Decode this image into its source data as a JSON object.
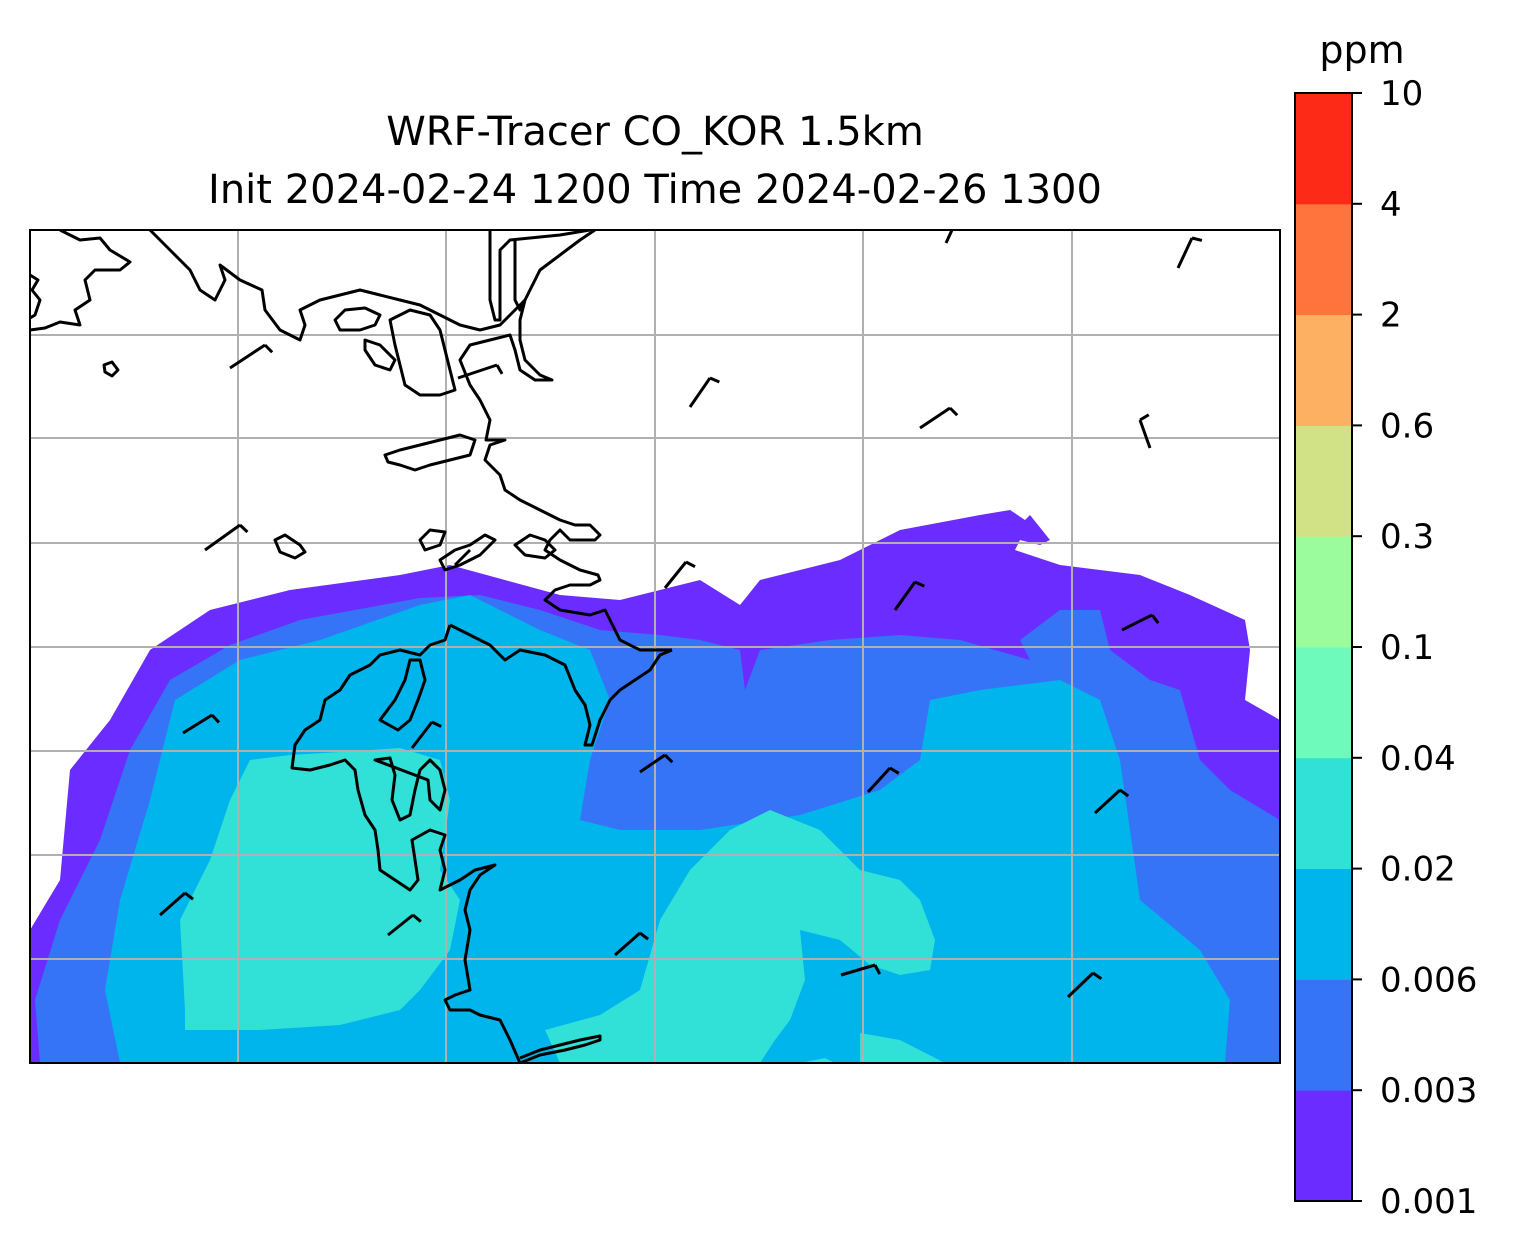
{
  "title": {
    "line1": "WRF-Tracer CO_KOR 1.5km",
    "line2": "Init 2024-02-24 1200 Time 2024-02-26 1300"
  },
  "colorbar": {
    "unit": "ppm",
    "levels": [
      "0.001",
      "0.003",
      "0.006",
      "0.02",
      "0.04",
      "0.1",
      "0.3",
      "0.6",
      "2",
      "4",
      "10"
    ],
    "colors": [
      "#6a2cff",
      "#3574f6",
      "#00b4ec",
      "#31e0d6",
      "#6dfabb",
      "#9bfc9d",
      "#d0e285",
      "#feb062",
      "#ff733c",
      "#fd2a17"
    ]
  },
  "map": {
    "land_outline_color": "#000000",
    "gridline_color": "#b0b0b0",
    "wind_barb_color": "#000000"
  }
}
